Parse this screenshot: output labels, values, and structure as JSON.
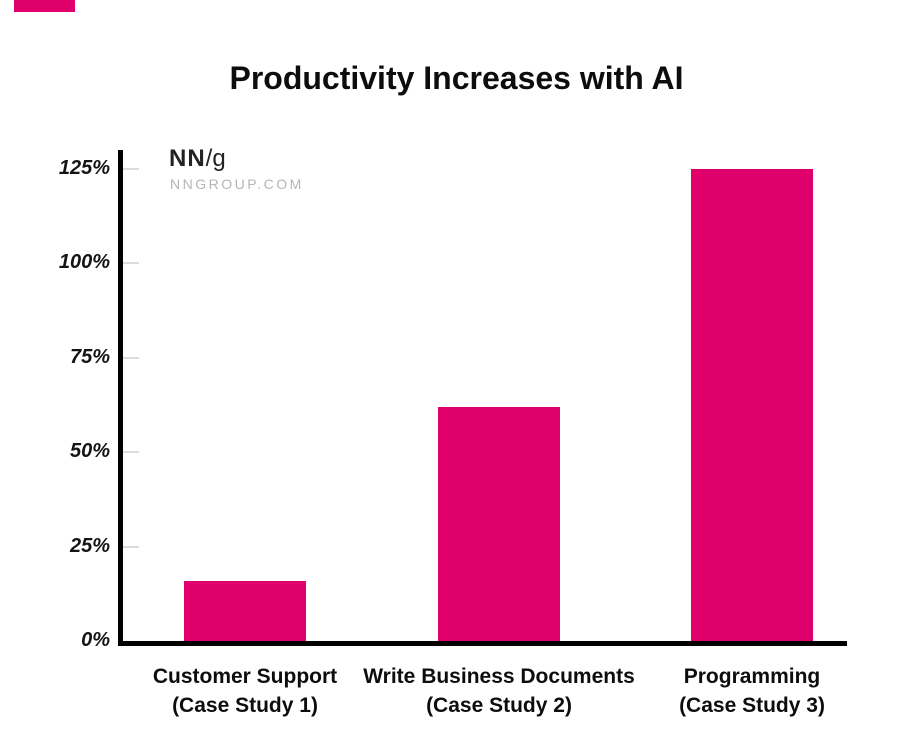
{
  "accent_color": "#e0006c",
  "branding": {
    "logo_bold": "NN",
    "logo_light": "/g",
    "site": "NNGROUP.COM"
  },
  "chart_data": {
    "type": "bar",
    "title": "Productivity Increases with AI",
    "categories": [
      {
        "line1": "Customer Support",
        "line2": "(Case Study 1)"
      },
      {
        "line1": "Write Business Documents",
        "line2": "(Case Study 2)"
      },
      {
        "line1": "Programming",
        "line2": "(Case Study 3)"
      }
    ],
    "values": [
      16,
      62,
      125
    ],
    "xlabel": "",
    "ylabel": "",
    "ylim": [
      0,
      125
    ],
    "yticks": [
      0,
      25,
      50,
      75,
      100,
      125
    ],
    "ytick_labels": [
      "0%",
      "25%",
      "50%",
      "75%",
      "100%",
      "125%"
    ],
    "bar_color": "#e0006c",
    "axis_color": "#000000",
    "tick_color": "#dddddd",
    "grid": false,
    "legend": null
  }
}
